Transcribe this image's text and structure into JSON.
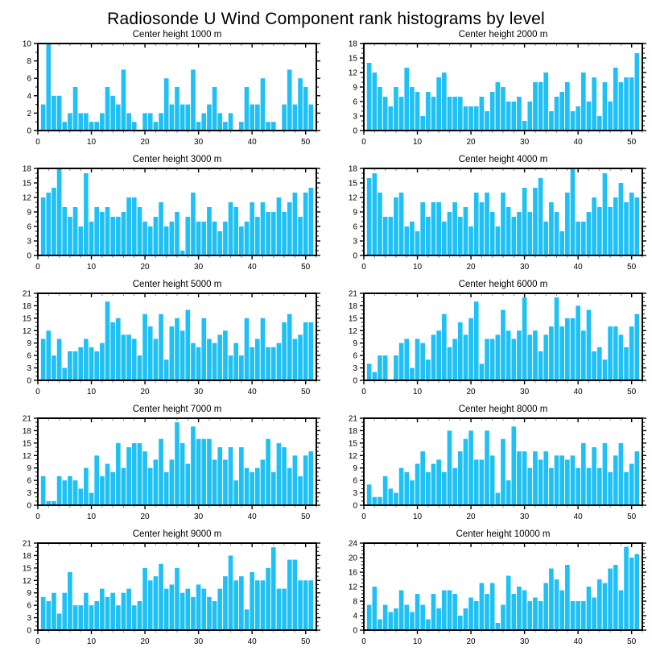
{
  "title": "Radiosonde U Wind Component rank histograms by level",
  "style": {
    "bar_color": "#1EC0F5",
    "axis_color": "#000000",
    "minor_tick_color": "#8a8a8a"
  },
  "axis": {
    "xticks": [
      0,
      10,
      20,
      30,
      40,
      50
    ],
    "xlim": [
      0,
      52
    ],
    "x_minor_step": 2
  },
  "chart_data": [
    {
      "type": "bar",
      "title": "Center height 1000 m",
      "ylim": [
        0,
        10
      ],
      "yticks": [
        0,
        2,
        4,
        6,
        8,
        10
      ],
      "x_start_rank": 1,
      "values": [
        3,
        10,
        4,
        4,
        1,
        2,
        5,
        2,
        2,
        1,
        1,
        2,
        5,
        4,
        3,
        7,
        2,
        1,
        0,
        2,
        2,
        1,
        2,
        6,
        3,
        5,
        3,
        3,
        7,
        1,
        2,
        3,
        5,
        2,
        1,
        2,
        0,
        1,
        5,
        3,
        3,
        6,
        1,
        1,
        0,
        3,
        7,
        3,
        6,
        5,
        3
      ]
    },
    {
      "type": "bar",
      "title": "Center height 2000 m",
      "ylim": [
        0,
        18
      ],
      "yticks": [
        0,
        3,
        6,
        9,
        12,
        15,
        18
      ],
      "x_start_rank": 1,
      "values": [
        14,
        12,
        9,
        7,
        5,
        9,
        7,
        13,
        9,
        8,
        3,
        8,
        7,
        11,
        12,
        7,
        7,
        7,
        5,
        5,
        5,
        7,
        4,
        8,
        10,
        9,
        6,
        6,
        7,
        2,
        6,
        10,
        10,
        12,
        4,
        7,
        8,
        10,
        4,
        5,
        12,
        6,
        11,
        3,
        10,
        6,
        13,
        10,
        11,
        11,
        16
      ]
    },
    {
      "type": "bar",
      "title": "Center height 3000 m",
      "ylim": [
        0,
        18
      ],
      "yticks": [
        0,
        3,
        6,
        9,
        12,
        15,
        18
      ],
      "x_start_rank": 1,
      "values": [
        12,
        13,
        14,
        18,
        10,
        8,
        10,
        6,
        17,
        7,
        10,
        9,
        10,
        8,
        8,
        9,
        12,
        12,
        10,
        7,
        6,
        8,
        11,
        6,
        7,
        9,
        1,
        8,
        13,
        7,
        7,
        10,
        7,
        5,
        7,
        11,
        10,
        6,
        7,
        11,
        8,
        11,
        9,
        9,
        12,
        9,
        11,
        13,
        8,
        13,
        14
      ]
    },
    {
      "type": "bar",
      "title": "Center height 4000 m",
      "ylim": [
        0,
        18
      ],
      "yticks": [
        0,
        3,
        6,
        9,
        12,
        15,
        18
      ],
      "x_start_rank": 1,
      "values": [
        16,
        17,
        13,
        8,
        8,
        12,
        13,
        6,
        7,
        5,
        11,
        8,
        11,
        11,
        7,
        9,
        11,
        8,
        10,
        6,
        13,
        11,
        13,
        9,
        6,
        13,
        10,
        8,
        9,
        14,
        9,
        14,
        16,
        7,
        11,
        9,
        5,
        13,
        18,
        7,
        7,
        9,
        12,
        10,
        17,
        10,
        12,
        15,
        11,
        13,
        12
      ]
    },
    {
      "type": "bar",
      "title": "Center height 5000 m",
      "ylim": [
        0,
        21
      ],
      "yticks": [
        0,
        3,
        6,
        9,
        12,
        15,
        18,
        21
      ],
      "x_start_rank": 1,
      "values": [
        10,
        12,
        6,
        10,
        3,
        7,
        7,
        8,
        10,
        8,
        7,
        9,
        19,
        14,
        15,
        11,
        11,
        10,
        6,
        16,
        13,
        10,
        16,
        5,
        13,
        15,
        12,
        17,
        9,
        8,
        15,
        10,
        9,
        11,
        12,
        6,
        9,
        6,
        15,
        8,
        10,
        15,
        8,
        8,
        9,
        14,
        16,
        10,
        11,
        14,
        14
      ]
    },
    {
      "type": "bar",
      "title": "Center height 6000 m",
      "ylim": [
        0,
        21
      ],
      "yticks": [
        0,
        3,
        6,
        9,
        12,
        15,
        18,
        21
      ],
      "x_start_rank": 1,
      "values": [
        4,
        2,
        6,
        6,
        0,
        6,
        9,
        10,
        3,
        10,
        9,
        5,
        11,
        12,
        16,
        8,
        10,
        14,
        11,
        15,
        19,
        4,
        10,
        10,
        11,
        17,
        12,
        10,
        12,
        20,
        11,
        12,
        7,
        11,
        13,
        20,
        13,
        15,
        15,
        18,
        12,
        17,
        7,
        8,
        5,
        13,
        13,
        11,
        8,
        13,
        16
      ]
    },
    {
      "type": "bar",
      "title": "Center height 7000 m",
      "ylim": [
        0,
        21
      ],
      "yticks": [
        0,
        3,
        6,
        9,
        12,
        15,
        18,
        21
      ],
      "x_start_rank": 1,
      "values": [
        7,
        1,
        1,
        7,
        6,
        7,
        6,
        4,
        9,
        3,
        12,
        7,
        10,
        8,
        15,
        9,
        14,
        15,
        15,
        13,
        9,
        11,
        16,
        8,
        11,
        20,
        15,
        10,
        19,
        16,
        16,
        16,
        11,
        14,
        11,
        14,
        6,
        14,
        9,
        8,
        9,
        11,
        16,
        8,
        15,
        14,
        9,
        12,
        7,
        12,
        13
      ]
    },
    {
      "type": "bar",
      "title": "Center height 8000 m",
      "ylim": [
        0,
        21
      ],
      "yticks": [
        0,
        3,
        6,
        9,
        12,
        15,
        18,
        21
      ],
      "x_start_rank": 1,
      "values": [
        5,
        2,
        2,
        7,
        4,
        3,
        9,
        8,
        6,
        10,
        13,
        8,
        10,
        11,
        8,
        18,
        9,
        13,
        16,
        18,
        11,
        11,
        18,
        12,
        3,
        16,
        6,
        19,
        13,
        13,
        9,
        13,
        11,
        13,
        9,
        12,
        12,
        11,
        12,
        9,
        15,
        9,
        14,
        9,
        15,
        8,
        12,
        15,
        8,
        10,
        13
      ]
    },
    {
      "type": "bar",
      "title": "Center height 9000 m",
      "ylim": [
        0,
        21
      ],
      "yticks": [
        0,
        3,
        6,
        9,
        12,
        15,
        18,
        21
      ],
      "x_start_rank": 1,
      "values": [
        8,
        7,
        9,
        4,
        9,
        14,
        6,
        6,
        9,
        6,
        7,
        10,
        8,
        9,
        6,
        9,
        10,
        6,
        7,
        15,
        12,
        13,
        16,
        10,
        11,
        15,
        9,
        10,
        8,
        11,
        10,
        8,
        7,
        10,
        13,
        18,
        12,
        13,
        5,
        14,
        12,
        12,
        15,
        20,
        10,
        10,
        17,
        17,
        12,
        12,
        12
      ]
    },
    {
      "type": "bar",
      "title": "Center height 10000 m",
      "ylim": [
        0,
        24
      ],
      "yticks": [
        0,
        4,
        8,
        12,
        16,
        20,
        24
      ],
      "x_start_rank": 1,
      "values": [
        7,
        12,
        3,
        7,
        5,
        6,
        11,
        7,
        5,
        10,
        7,
        3,
        10,
        6,
        11,
        11,
        10,
        4,
        6,
        9,
        8,
        13,
        10,
        13,
        2,
        7,
        15,
        10,
        12,
        11,
        8,
        9,
        8,
        13,
        17,
        14,
        11,
        18,
        8,
        8,
        8,
        12,
        9,
        14,
        13,
        17,
        18,
        11,
        23,
        20,
        21
      ]
    }
  ]
}
